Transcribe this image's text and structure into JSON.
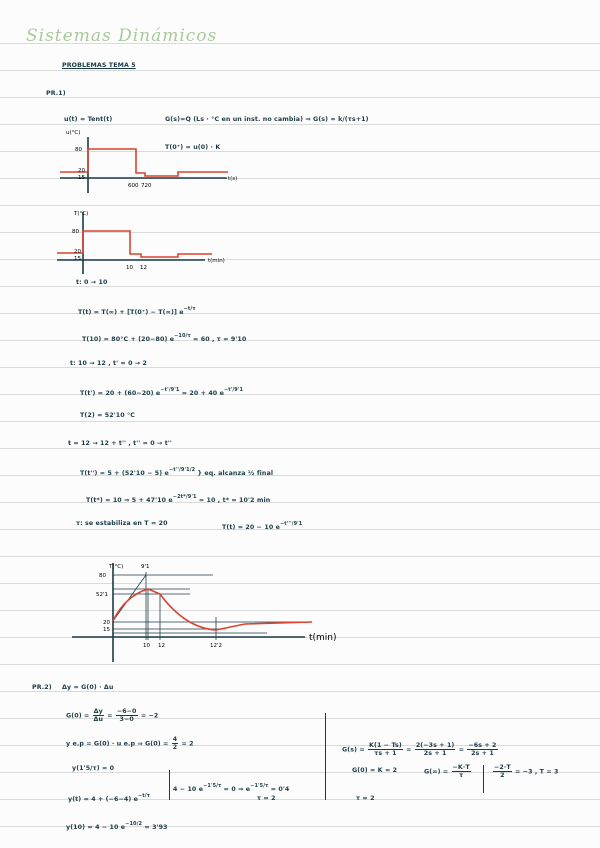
{
  "title": "Sistemas Dinámicos",
  "heading": "PROBLEMAS TEMA 5",
  "pr1": {
    "label": "PR.1)",
    "input": "u(t) = Tent(t)",
    "note": "G(s)=Q (Ls · °C en un inst. no cambia) ⇒ G(s) = k/(τs+1)",
    "init": "T(0⁺) = u(0) · K",
    "graph1": {
      "ylabel": "u(°C)",
      "xlabel": "t(s)",
      "yticks": [
        "80",
        "20",
        "15"
      ],
      "xticks": [
        "600",
        "720"
      ],
      "levels": [
        20,
        80,
        20,
        15,
        20
      ]
    },
    "graph2": {
      "ylabel": "T(°C)",
      "xlabel": "t(min)",
      "yticks": [
        "80",
        "20",
        "15"
      ],
      "xticks": [
        "10",
        "12"
      ]
    },
    "lines": [
      "t: 0 → 10",
      "T(t) = T(∞) + [T(0⁺) − T(∞)] e",
      "−t/τ",
      "T(10) = 80°C + (20−80) e",
      "−10/τ",
      " = 60 ,    τ = 9'10",
      "t: 10 → 12 ,  t' = 0 → 2",
      "T(t') = 20 + (60−20) e",
      "−t'/9'1",
      " = 20 + 40 e",
      "−t'/9'1",
      "T(2) = 52'10 °C",
      "t = 12 → 12 + t'' ,   t'' = 0 → t''",
      "T(t'') = 5 + (52'10 − 5) e",
      "−t''/9'1/2",
      "} eq. alcanza ½ final",
      "T(t*) = 10  ⇒   5 + 47'10 e",
      "−2t*/9'1",
      " = 10 ,    t* = 10'2 min",
      "τ: se estabiliza en  T = 20",
      "T(t) = 20 − 10 e",
      "−t'''/9'1"
    ],
    "graph3": {
      "ylabel": "T(°C)",
      "xlabel": "t(min)",
      "yticks": [
        "80",
        "52'1",
        "20",
        "15"
      ],
      "xticks": [
        "10",
        "12",
        "12'2"
      ],
      "tau_label": "9'1"
    }
  },
  "pr2": {
    "label": "PR.2)",
    "head": "Δy = G(0) · Δu",
    "g0": {
      "lhs": "G(0) =",
      "f1n": "Δy",
      "f1d": "Δu",
      "f2n": "−6−0",
      "f2d": "3−0",
      "res": "= −2"
    },
    "yep": {
      "lhs": "y e.p = G(0) · u e.p  ⇒  G(0) =",
      "fn": "4",
      "fd": "2",
      "res": "= 2"
    },
    "cond": "y(1'5/τ) = 0",
    "yt": "y(t) = 4 + (−6−4) e",
    "yt_exp": "−t/τ",
    "sys1": "4 − 10 e",
    "sys1_exp": "−1'5/τ",
    "sys2": " = 0  ⇒   e",
    "sys2_exp": "−1'5/τ",
    "sys3": " = 0'4",
    "tau": "τ = 2",
    "y10": "y(10) = 4 − 10 e",
    "y10_exp": "−10/2",
    "y10_res": " = 3'93",
    "right": {
      "gs": "G(s) =",
      "f1n": "K(1 − Ts)",
      "f1d": "τs + 1",
      "f2n": "2(−3s + 1)",
      "f2d": "2s + 1",
      "f3n": "−6s + 2",
      "f3d": "2s + 1",
      "g0": "G(0) = K = 2",
      "ginf": "G(∞) =",
      "ginf_n": "−K·T",
      "ginf_d": "τ",
      "res_n": "−2·T",
      "res_d": "2",
      "res": "= −3 ,   T = 3",
      "tau": "τ = 2"
    }
  },
  "colors": {
    "ink": "#1b3b47",
    "red": "#d9432f",
    "title": "#a9c99b"
  }
}
